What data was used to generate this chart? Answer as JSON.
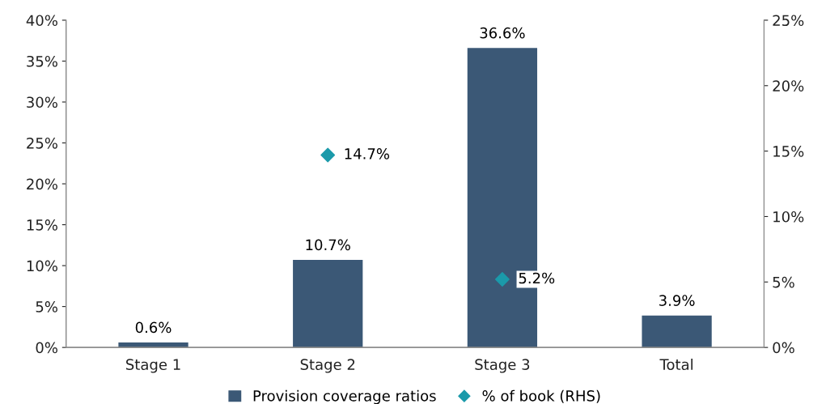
{
  "chart_data": {
    "type": "bar",
    "categories": [
      "Stage 1",
      "Stage 2",
      "Stage 3",
      "Total"
    ],
    "series": [
      {
        "name": "Provision coverage ratios",
        "color": "#3b5876",
        "values": [
          0.6,
          10.7,
          36.6,
          3.9
        ],
        "value_labels": [
          "0.6%",
          "10.7%",
          "36.6%",
          "3.9%"
        ]
      },
      {
        "name": "% of book (RHS)",
        "type": "scatter",
        "axis": "y2",
        "color": "#1b9aaa",
        "values": [
          null,
          14.7,
          5.2,
          null
        ],
        "value_labels": [
          null,
          "14.7%",
          "5.2%",
          null
        ]
      }
    ],
    "ylim": [
      0,
      40
    ],
    "yticks": [
      {
        "value": 0,
        "label": "0%"
      },
      {
        "value": 5,
        "label": "5%"
      },
      {
        "value": 10,
        "label": "10%"
      },
      {
        "value": 15,
        "label": "15%"
      },
      {
        "value": 20,
        "label": "20%"
      },
      {
        "value": 25,
        "label": "25%"
      },
      {
        "value": 30,
        "label": "30%"
      },
      {
        "value": 35,
        "label": "35%"
      },
      {
        "value": 40,
        "label": "40%"
      }
    ],
    "y2lim": [
      0,
      25
    ],
    "y2ticks": [
      {
        "value": 0,
        "label": "0%"
      },
      {
        "value": 5,
        "label": "5%"
      },
      {
        "value": 10,
        "label": "10%"
      },
      {
        "value": 15,
        "label": "15%"
      },
      {
        "value": 20,
        "label": "20%"
      },
      {
        "value": 25,
        "label": "25%"
      }
    ],
    "marker": "diamond",
    "grid": false,
    "legend": "bottom"
  }
}
